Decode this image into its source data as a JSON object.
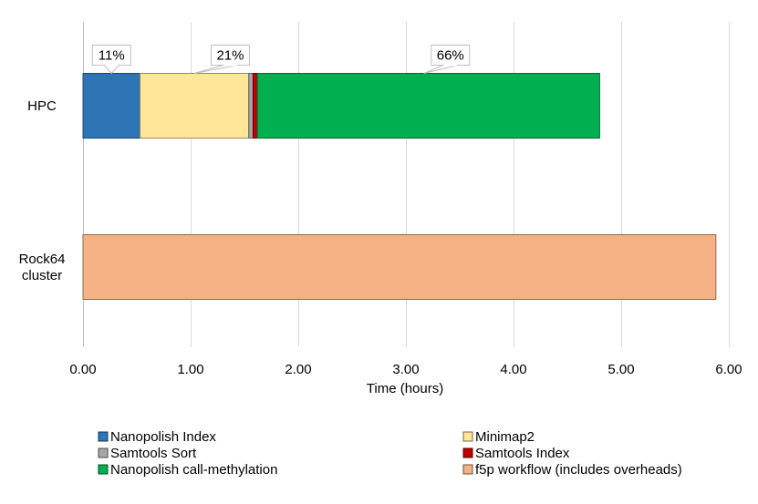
{
  "chart_data": {
    "type": "bar",
    "orientation": "horizontal",
    "stacked": true,
    "title": "",
    "xlabel": "Time (hours)",
    "ylabel": "",
    "xlim": [
      0,
      6
    ],
    "x_ticks": [
      0,
      1,
      2,
      3,
      4,
      5,
      6
    ],
    "x_tick_labels": [
      "0.00",
      "1.00",
      "2.00",
      "3.00",
      "4.00",
      "5.00",
      "6.00"
    ],
    "grid": true,
    "categories": [
      {
        "id": "hpc",
        "label_lines": [
          "HPC"
        ]
      },
      {
        "id": "rock64",
        "label_lines": [
          "Rock64",
          "cluster"
        ]
      }
    ],
    "series": [
      {
        "name": "Nanopolish Index",
        "color": "#2e75b6",
        "values": [
          0.53,
          0
        ]
      },
      {
        "name": "Minimap2",
        "color": "#ffe699",
        "values": [
          1.01,
          0
        ]
      },
      {
        "name": "Samtools Sort",
        "color": "#a6a6a6",
        "values": [
          0.04,
          0
        ]
      },
      {
        "name": "Samtools Index",
        "color": "#c00000",
        "values": [
          0.04,
          0
        ]
      },
      {
        "name": "Nanopolish call-methylation",
        "color": "#00b050",
        "values": [
          3.18,
          0
        ]
      },
      {
        "name": "f5p workflow (includes overheads)",
        "color": "#f4b183",
        "values": [
          0,
          5.88
        ]
      }
    ],
    "annotations": [
      {
        "text": "11%",
        "category": "hpc",
        "series": "Nanopolish Index"
      },
      {
        "text": "21%",
        "category": "hpc",
        "series": "Minimap2"
      },
      {
        "text": "66%",
        "category": "hpc",
        "series": "Nanopolish call-methylation"
      }
    ],
    "legend": {
      "position": "bottom",
      "columns": 2,
      "order": [
        "Nanopolish Index",
        "Minimap2",
        "Samtools Sort",
        "Samtools Index",
        "Nanopolish call-methylation",
        "f5p workflow (includes overheads)"
      ]
    }
  }
}
